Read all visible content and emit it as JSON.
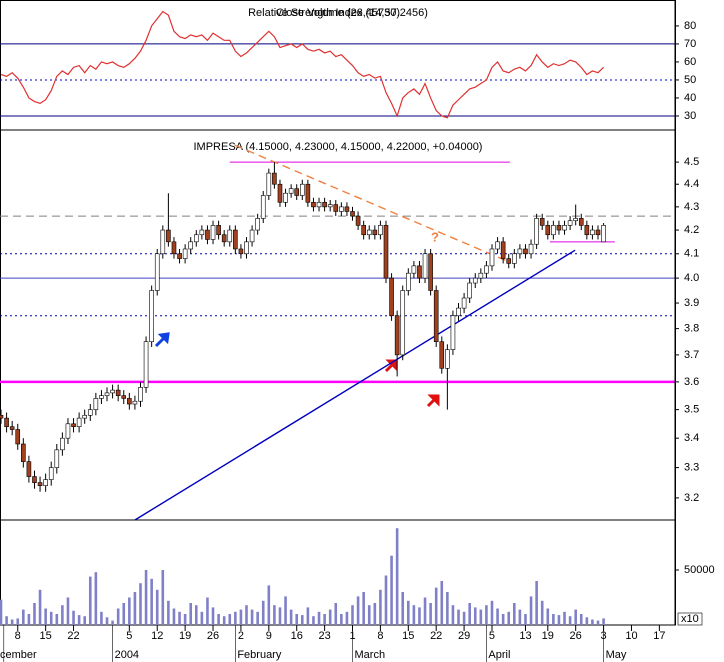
{
  "chart_data": [
    {
      "type": "line",
      "titles": [
        "Relative Strength Index (14,57.2456)",
        "Close Volume (26,45730)"
      ],
      "color": "#e03030",
      "xlim": [
        -0.18,
        120.8
      ],
      "ylim": [
        22.2,
        94.4
      ],
      "yticks": [
        30,
        40,
        50,
        60,
        70,
        80
      ],
      "reference_lines": [
        {
          "value": 70,
          "color": "#000080",
          "style": "solid"
        },
        {
          "value": 50,
          "color": "#0000c0",
          "style": "dotted"
        },
        {
          "value": 30,
          "color": "#000080",
          "style": "solid"
        }
      ],
      "values": [
        53,
        52,
        54,
        51,
        46,
        40,
        38,
        37,
        39,
        44,
        52,
        55,
        53,
        57,
        58,
        54,
        58,
        56,
        60,
        59,
        60,
        58,
        57,
        59,
        62,
        66,
        72,
        80,
        84,
        88,
        86,
        77,
        74,
        73,
        75,
        74,
        75,
        72,
        76,
        74,
        72,
        72,
        66,
        63,
        65,
        68,
        71,
        74,
        77,
        74,
        68,
        69,
        70,
        68,
        70,
        67,
        66,
        67,
        65,
        66,
        63,
        64,
        61,
        58,
        54,
        52,
        53,
        51,
        52,
        43,
        37,
        30,
        40,
        43,
        45,
        42,
        48,
        40,
        33,
        30,
        29,
        36,
        39,
        42,
        45,
        46,
        48,
        50,
        57,
        60,
        55,
        54,
        56,
        57,
        55,
        58,
        64,
        60,
        57,
        59,
        58,
        59,
        61,
        60,
        57,
        53,
        55,
        54,
        57
      ]
    },
    {
      "type": "candlestick",
      "title": "IMPRESA (4.15000, 4.23000, 4.15000, 4.22000, +0.04000)",
      "up_color": "#ffffff",
      "down_color": "#a0401e",
      "log": true,
      "xlim": [
        -0.18,
        120.8
      ],
      "ylim": [
        3.129,
        4.649
      ],
      "yticks": [
        3.2,
        3.3,
        3.4,
        3.5,
        3.6,
        3.7,
        3.8,
        3.9,
        {
          "value": 4,
          "label": "4.0"
        },
        4.1,
        4.2,
        4.3,
        4.4,
        4.5
      ],
      "open": [
        3.48,
        3.47,
        3.44,
        3.43,
        3.38,
        3.32,
        3.27,
        3.25,
        3.24,
        3.26,
        3.3,
        3.36,
        3.4,
        3.45,
        3.44,
        3.47,
        3.48,
        3.5,
        3.54,
        3.55,
        3.56,
        3.57,
        3.55,
        3.54,
        3.52,
        3.53,
        3.58,
        3.75,
        3.95,
        4.1,
        4.2,
        4.15,
        4.1,
        4.08,
        4.12,
        4.15,
        4.18,
        4.2,
        4.16,
        4.22,
        4.18,
        4.15,
        4.2,
        4.12,
        4.1,
        4.15,
        4.2,
        4.25,
        4.35,
        4.45,
        4.4,
        4.32,
        4.36,
        4.38,
        4.35,
        4.4,
        4.32,
        4.3,
        4.32,
        4.3,
        4.31,
        4.28,
        4.3,
        4.28,
        4.26,
        4.22,
        4.18,
        4.2,
        4.18,
        4.22,
        4.0,
        3.85,
        3.7,
        3.95,
        4.02,
        4.05,
        4.0,
        4.1,
        3.95,
        3.75,
        3.65,
        3.72,
        3.85,
        3.88,
        3.92,
        3.98,
        4.0,
        4.02,
        4.05,
        4.12,
        4.15,
        4.08,
        4.06,
        4.1,
        4.12,
        4.1,
        4.14,
        4.25,
        4.22,
        4.18,
        4.22,
        4.2,
        4.22,
        4.24,
        4.25,
        4.22,
        4.18,
        4.2,
        4.15
      ],
      "high": [
        3.5,
        3.49,
        3.46,
        3.45,
        3.4,
        3.34,
        3.29,
        3.27,
        3.28,
        3.32,
        3.38,
        3.42,
        3.47,
        3.47,
        3.49,
        3.5,
        3.52,
        3.56,
        3.57,
        3.58,
        3.59,
        3.59,
        3.57,
        3.56,
        3.55,
        3.6,
        3.77,
        3.97,
        4.12,
        4.22,
        4.36,
        4.17,
        4.12,
        4.14,
        4.17,
        4.2,
        4.22,
        4.22,
        4.24,
        4.24,
        4.2,
        4.22,
        4.22,
        4.14,
        4.17,
        4.22,
        4.27,
        4.37,
        4.47,
        4.5,
        4.42,
        4.38,
        4.4,
        4.4,
        4.42,
        4.42,
        4.34,
        4.34,
        4.34,
        4.33,
        4.33,
        4.32,
        4.32,
        4.3,
        4.28,
        4.24,
        4.22,
        4.22,
        4.24,
        4.24,
        4.02,
        3.87,
        3.97,
        4.04,
        4.07,
        4.07,
        4.12,
        4.12,
        3.97,
        3.77,
        3.74,
        3.87,
        3.9,
        3.94,
        4.0,
        4.02,
        4.04,
        4.07,
        4.14,
        4.17,
        4.17,
        4.1,
        4.12,
        4.14,
        4.14,
        4.16,
        4.27,
        4.27,
        4.24,
        4.24,
        4.24,
        4.24,
        4.26,
        4.31,
        4.27,
        4.24,
        4.22,
        4.22,
        4.23
      ],
      "low": [
        3.45,
        3.42,
        3.41,
        3.36,
        3.3,
        3.25,
        3.23,
        3.22,
        3.22,
        3.24,
        3.28,
        3.34,
        3.38,
        3.42,
        3.42,
        3.45,
        3.46,
        3.48,
        3.52,
        3.53,
        3.54,
        3.53,
        3.52,
        3.5,
        3.5,
        3.51,
        3.56,
        3.73,
        3.93,
        4.08,
        4.13,
        4.08,
        4.06,
        4.06,
        4.1,
        4.13,
        4.16,
        4.14,
        4.14,
        4.16,
        4.13,
        4.13,
        4.1,
        4.08,
        4.08,
        4.13,
        4.18,
        4.23,
        4.33,
        4.38,
        4.3,
        4.3,
        4.34,
        4.33,
        4.33,
        4.3,
        4.28,
        4.28,
        4.28,
        4.28,
        4.26,
        4.26,
        4.26,
        4.24,
        4.2,
        4.16,
        4.16,
        4.16,
        4.16,
        3.98,
        3.83,
        3.62,
        3.68,
        3.93,
        4.0,
        3.98,
        3.98,
        3.93,
        3.73,
        3.63,
        3.5,
        3.7,
        3.83,
        3.86,
        3.9,
        3.96,
        3.98,
        4.0,
        4.03,
        4.1,
        4.06,
        4.04,
        4.04,
        4.08,
        4.08,
        4.08,
        4.12,
        4.2,
        4.16,
        4.16,
        4.18,
        4.18,
        4.2,
        4.22,
        4.2,
        4.16,
        4.16,
        4.16,
        4.15
      ],
      "close": [
        3.47,
        3.44,
        3.43,
        3.38,
        3.32,
        3.27,
        3.25,
        3.24,
        3.26,
        3.3,
        3.36,
        3.4,
        3.45,
        3.44,
        3.47,
        3.48,
        3.5,
        3.54,
        3.55,
        3.56,
        3.57,
        3.55,
        3.54,
        3.52,
        3.53,
        3.58,
        3.75,
        3.95,
        4.1,
        4.2,
        4.15,
        4.1,
        4.08,
        4.12,
        4.15,
        4.18,
        4.2,
        4.16,
        4.22,
        4.18,
        4.15,
        4.2,
        4.12,
        4.1,
        4.15,
        4.2,
        4.25,
        4.35,
        4.45,
        4.4,
        4.32,
        4.36,
        4.38,
        4.35,
        4.4,
        4.32,
        4.3,
        4.32,
        4.3,
        4.31,
        4.28,
        4.3,
        4.28,
        4.26,
        4.22,
        4.18,
        4.2,
        4.18,
        4.22,
        4.0,
        3.85,
        3.7,
        3.95,
        4.02,
        4.05,
        4.0,
        4.1,
        3.95,
        3.75,
        3.65,
        3.72,
        3.85,
        3.88,
        3.92,
        3.98,
        4.0,
        4.02,
        4.05,
        4.12,
        4.15,
        4.08,
        4.06,
        4.1,
        4.12,
        4.1,
        4.14,
        4.25,
        4.22,
        4.18,
        4.22,
        4.2,
        4.22,
        4.24,
        4.25,
        4.22,
        4.18,
        4.2,
        4.18,
        4.22
      ],
      "reference_lines": [
        {
          "value": 4.5,
          "color": "#e000e0",
          "style": "solid",
          "x": [
            41,
            91.2
          ]
        },
        {
          "value": 4.26,
          "color": "#808080",
          "style": "dashed"
        },
        {
          "value": 4.1,
          "color": "#0000a0",
          "style": "dotted"
        },
        {
          "value": 4,
          "color": "#4040c0",
          "style": "solid"
        },
        {
          "value": 3.85,
          "color": "#0000a0",
          "style": "dotted"
        },
        {
          "value": 3.6,
          "color": "#ff00ff",
          "style": "thick"
        },
        {
          "value": 4.15,
          "color": "#e000e0",
          "style": "solid",
          "x": [
            98.4,
            110
          ]
        }
      ],
      "trend_lines": [
        {
          "x": [
            24,
            102.9
          ],
          "y": [
            3.129,
            4.115
          ],
          "color": "#0000c0",
          "style": "solid"
        },
        {
          "x": [
            41.9,
            91.2
          ],
          "y": [
            4.578,
            4.065
          ],
          "color": "#f08040",
          "style": "dashed"
        }
      ],
      "annotations": [
        {
          "text": "?",
          "color": "#f08040"
        }
      ]
    },
    {
      "type": "bar",
      "color": "#8080c8",
      "xlim": [
        -0.18,
        120.8
      ],
      "ylim": [
        0,
        95450
      ],
      "yticks": [
        50000
      ],
      "scale_label": "x10",
      "values": [
        23000,
        8000,
        5000,
        6000,
        14000,
        10000,
        20000,
        32000,
        15000,
        12000,
        10000,
        18000,
        25000,
        13000,
        9000,
        8000,
        44000,
        48000,
        12000,
        7000,
        4000,
        15000,
        20000,
        25000,
        30000,
        38000,
        50000,
        42000,
        32000,
        50000,
        22000,
        15000,
        12000,
        10000,
        20000,
        18000,
        12000,
        25000,
        16000,
        10000,
        8000,
        10000,
        12000,
        14000,
        18000,
        14000,
        12000,
        22000,
        36000,
        18000,
        16000,
        26000,
        14000,
        10000,
        9000,
        16000,
        8000,
        12000,
        10000,
        14000,
        20000,
        10000,
        12000,
        18000,
        26000,
        30000,
        18000,
        20000,
        32000,
        45000,
        63000,
        88000,
        30000,
        22000,
        18000,
        16000,
        25000,
        20000,
        34000,
        40000,
        30000,
        18000,
        14000,
        12000,
        20000,
        16000,
        14000,
        18000,
        22000,
        15000,
        10000,
        12000,
        20000,
        14000,
        10000,
        26000,
        40000,
        22000,
        15000,
        10000,
        9000,
        12000,
        8000,
        14000,
        10000,
        7000,
        5000,
        4000,
        6000
      ],
      "xticks": [
        {
          "value": 3,
          "label": "8"
        },
        {
          "value": 8,
          "label": "15"
        },
        {
          "value": 13,
          "label": "22"
        },
        {
          "value": 23,
          "label": "5"
        },
        {
          "value": 28,
          "label": "12"
        },
        {
          "value": 33,
          "label": "19"
        },
        {
          "value": 38,
          "label": "26"
        },
        {
          "value": 43,
          "label": "2"
        },
        {
          "value": 48,
          "label": "9"
        },
        {
          "value": 53,
          "label": "16"
        },
        {
          "value": 58,
          "label": "23"
        },
        {
          "value": 63,
          "label": "1"
        },
        {
          "value": 68,
          "label": "8"
        },
        {
          "value": 73,
          "label": "15"
        },
        {
          "value": 78,
          "label": "22"
        },
        {
          "value": 83,
          "label": "29"
        },
        {
          "value": 88,
          "label": "5"
        },
        {
          "value": 94,
          "label": "13"
        },
        {
          "value": 98,
          "label": "19"
        },
        {
          "value": 103,
          "label": "26"
        },
        {
          "value": 108,
          "label": "3"
        },
        {
          "value": 113,
          "label": "10"
        },
        {
          "value": 118,
          "label": "17"
        }
      ],
      "month_labels": [
        {
          "value": 0.5,
          "label": "cember"
        },
        {
          "value": 20,
          "label": "2004"
        },
        {
          "value": 42,
          "label": "February"
        },
        {
          "value": 63,
          "label": "March"
        },
        {
          "value": 87,
          "label": "April"
        },
        {
          "value": 108,
          "label": "May"
        }
      ]
    }
  ]
}
